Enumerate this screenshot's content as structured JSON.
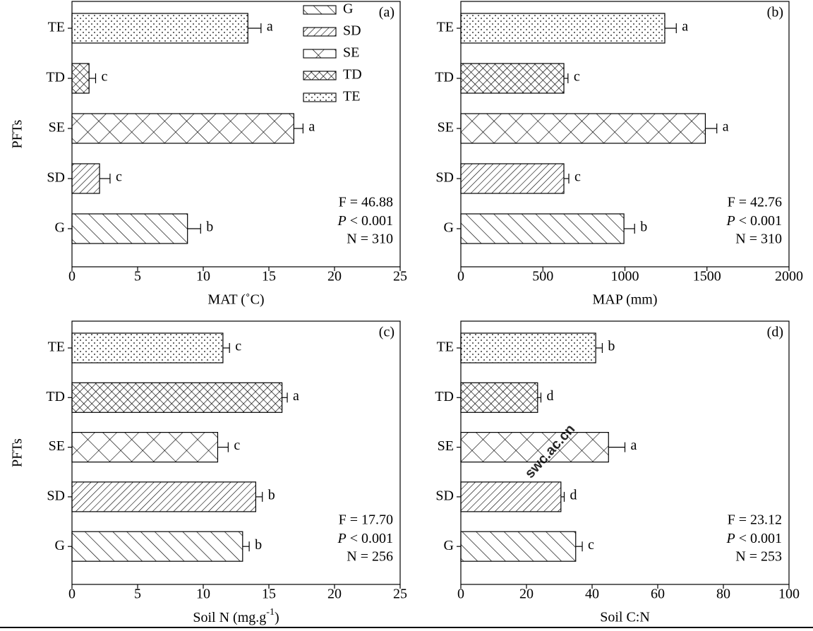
{
  "watermark": "swc.ac.cn",
  "chart_data": [
    {
      "type": "bar",
      "orientation": "horizontal",
      "panel": "(a)",
      "ylabel": "PFTs",
      "xlabel": "MAT (˚C)",
      "categories": [
        "G",
        "SD",
        "SE",
        "TD",
        "TE"
      ],
      "values": [
        8.8,
        2.1,
        16.9,
        1.3,
        13.4
      ],
      "errors": [
        1.0,
        0.8,
        0.7,
        0.5,
        1.0
      ],
      "letters": [
        "b",
        "c",
        "a",
        "c",
        "a"
      ],
      "xlim": [
        0,
        25
      ],
      "xticks": [
        0,
        5,
        10,
        15,
        20,
        25
      ],
      "stats": {
        "F": "F = 46.88",
        "P": {
          "symbol": "P",
          "text": " < 0.001"
        },
        "N": "N = 310"
      },
      "legend": true
    },
    {
      "type": "bar",
      "orientation": "horizontal",
      "panel": "(b)",
      "xlabel": "MAP (mm)",
      "categories": [
        "G",
        "SD",
        "SE",
        "TD",
        "TE"
      ],
      "values": [
        994,
        628,
        1490,
        628,
        1243
      ],
      "errors": [
        65,
        30,
        70,
        25,
        70
      ],
      "letters": [
        "b",
        "c",
        "a",
        "c",
        "a"
      ],
      "xlim": [
        0,
        2000
      ],
      "xticks": [
        0,
        500,
        1000,
        1500,
        2000
      ],
      "stats": {
        "F": "F = 42.76",
        "P": {
          "symbol": "P",
          "text": " < 0.001"
        },
        "N": "N = 310"
      },
      "legend": false
    },
    {
      "type": "bar",
      "orientation": "horizontal",
      "panel": "(c)",
      "ylabel": "PFTs",
      "xlabel": {
        "text": "Soil N (mg.g",
        "sup": "-1",
        "tail": ")"
      },
      "categories": [
        "G",
        "SD",
        "SE",
        "TD",
        "TE"
      ],
      "values": [
        13.0,
        14.0,
        11.1,
        16.0,
        11.5
      ],
      "errors": [
        0.5,
        0.5,
        0.8,
        0.4,
        0.5
      ],
      "letters": [
        "b",
        "b",
        "c",
        "a",
        "c"
      ],
      "xlim": [
        0,
        25
      ],
      "xticks": [
        0,
        5,
        10,
        15,
        20,
        25
      ],
      "stats": {
        "F": "F = 17.70",
        "P": {
          "symbol": "P",
          "text": " < 0.001"
        },
        "N": "N = 256"
      },
      "legend": false
    },
    {
      "type": "bar",
      "orientation": "horizontal",
      "panel": "(d)",
      "xlabel": "Soil C:N",
      "categories": [
        "G",
        "SD",
        "SE",
        "TD",
        "TE"
      ],
      "values": [
        35,
        30.5,
        45,
        23.4,
        41.1
      ],
      "errors": [
        2,
        1,
        5,
        1,
        2
      ],
      "letters": [
        "c",
        "d",
        "a",
        "d",
        "b"
      ],
      "xlim": [
        0,
        100
      ],
      "xticks": [
        0,
        20,
        40,
        60,
        80,
        100
      ],
      "stats": {
        "F": "F = 23.12",
        "P": {
          "symbol": "P",
          "text": " < 0.001"
        },
        "N": "N = 253"
      },
      "legend": false
    }
  ]
}
